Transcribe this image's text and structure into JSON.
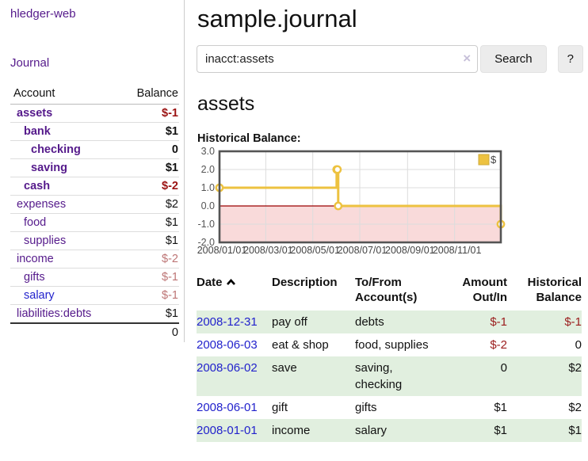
{
  "app": {
    "title": "hledger-web",
    "nav_journal": "Journal"
  },
  "header": {
    "title": "sample.journal"
  },
  "search": {
    "value": "inacct:assets",
    "clear_icon": "×",
    "button": "Search",
    "help": "?"
  },
  "account_page": {
    "heading": "assets",
    "chart_label": "Historical Balance:"
  },
  "sidebar": {
    "columns": [
      "Account",
      "Balance"
    ],
    "accounts": [
      {
        "name": "assets",
        "depth": 1,
        "bold": true,
        "link_color": "purple",
        "balance": "$-1",
        "balance_class": "neg-strong"
      },
      {
        "name": "bank",
        "depth": 2,
        "bold": true,
        "link_color": "purple",
        "balance": "$1",
        "balance_class": ""
      },
      {
        "name": "checking",
        "depth": 3,
        "bold": true,
        "link_color": "purple",
        "balance": "0",
        "balance_class": ""
      },
      {
        "name": "saving",
        "depth": 3,
        "bold": true,
        "link_color": "purple",
        "balance": "$1",
        "balance_class": ""
      },
      {
        "name": "cash",
        "depth": 2,
        "bold": true,
        "link_color": "purple",
        "balance": "$-2",
        "balance_class": "neg-strong"
      },
      {
        "name": "expenses",
        "depth": 1,
        "bold": false,
        "link_color": "purple",
        "balance": "$2",
        "balance_class": ""
      },
      {
        "name": "food",
        "depth": 2,
        "bold": false,
        "link_color": "purple",
        "balance": "$1",
        "balance_class": ""
      },
      {
        "name": "supplies",
        "depth": 2,
        "bold": false,
        "link_color": "purple",
        "balance": "$1",
        "balance_class": ""
      },
      {
        "name": "income",
        "depth": 1,
        "bold": false,
        "link_color": "purple",
        "balance": "$-2",
        "balance_class": "neg-muted"
      },
      {
        "name": "gifts",
        "depth": 2,
        "bold": false,
        "link_color": "purple",
        "balance": "$-1",
        "balance_class": "neg-muted"
      },
      {
        "name": "salary",
        "depth": 2,
        "bold": false,
        "link_color": "blue",
        "balance": "$-1",
        "balance_class": "neg-muted"
      },
      {
        "name": "liabilities:debts",
        "depth": 1,
        "bold": false,
        "link_color": "purple",
        "balance": "$1",
        "balance_class": ""
      }
    ],
    "total": "0"
  },
  "chart_data": {
    "type": "line",
    "step": true,
    "title": "Historical Balance",
    "legend": {
      "label": "$",
      "color": "#edc240",
      "position": "top-right"
    },
    "series": [
      {
        "name": "$",
        "color": "#edc240",
        "points": [
          [
            "2008-01-01",
            1
          ],
          [
            "2008-06-01",
            2
          ],
          [
            "2008-06-02",
            2
          ],
          [
            "2008-06-03",
            0
          ],
          [
            "2008-12-31",
            -1
          ]
        ]
      }
    ],
    "x_range": [
      "2008-01-01",
      "2008-12-31"
    ],
    "ylim": [
      -2,
      3
    ],
    "y_ticks": [
      {
        "v": 3,
        "label": "3.0"
      },
      {
        "v": 2,
        "label": "2.0"
      },
      {
        "v": 1,
        "label": "1.0"
      },
      {
        "v": 0,
        "label": "0.0"
      },
      {
        "v": -1,
        "label": "-1.0"
      },
      {
        "v": -2,
        "label": "-2.0"
      }
    ],
    "x_ticks": [
      {
        "date": "2008-01-01",
        "label": "2008/01/01"
      },
      {
        "date": "2008-03-01",
        "label": "2008/03/01"
      },
      {
        "date": "2008-05-01",
        "label": "2008/05/01"
      },
      {
        "date": "2008-07-01",
        "label": "2008/07/01"
      },
      {
        "date": "2008-09-01",
        "label": "2008/09/01"
      },
      {
        "date": "2008-11-01",
        "label": "2008/11/01"
      }
    ],
    "grid": true,
    "negative_fill": "#f9dada",
    "zero_line_color": "#9b0000",
    "border_color": "#545454",
    "tick_label_color": "#545454"
  },
  "register": {
    "columns": [
      {
        "label": "Date",
        "sorted": "asc"
      },
      {
        "label": "Description"
      },
      {
        "label": "To/From Account(s)"
      },
      {
        "label": "Amount Out/In",
        "align": "right"
      },
      {
        "label": "Historical Balance",
        "align": "right"
      }
    ],
    "rows": [
      {
        "date": "2008-12-31",
        "description": "pay off",
        "accounts": "debts",
        "amount": "$-1",
        "amount_neg": true,
        "balance": "$-1",
        "balance_neg": true
      },
      {
        "date": "2008-06-03",
        "description": "eat & shop",
        "accounts": "food, supplies",
        "amount": "$-2",
        "amount_neg": true,
        "balance": "0",
        "balance_neg": false
      },
      {
        "date": "2008-06-02",
        "description": "save",
        "accounts": "saving, checking",
        "amount": "0",
        "amount_neg": false,
        "balance": "$2",
        "balance_neg": false
      },
      {
        "date": "2008-06-01",
        "description": "gift",
        "accounts": "gifts",
        "amount": "$1",
        "amount_neg": false,
        "balance": "$2",
        "balance_neg": false
      },
      {
        "date": "2008-01-01",
        "description": "income",
        "accounts": "salary",
        "amount": "$1",
        "amount_neg": false,
        "balance": "$1",
        "balance_neg": false
      }
    ]
  }
}
